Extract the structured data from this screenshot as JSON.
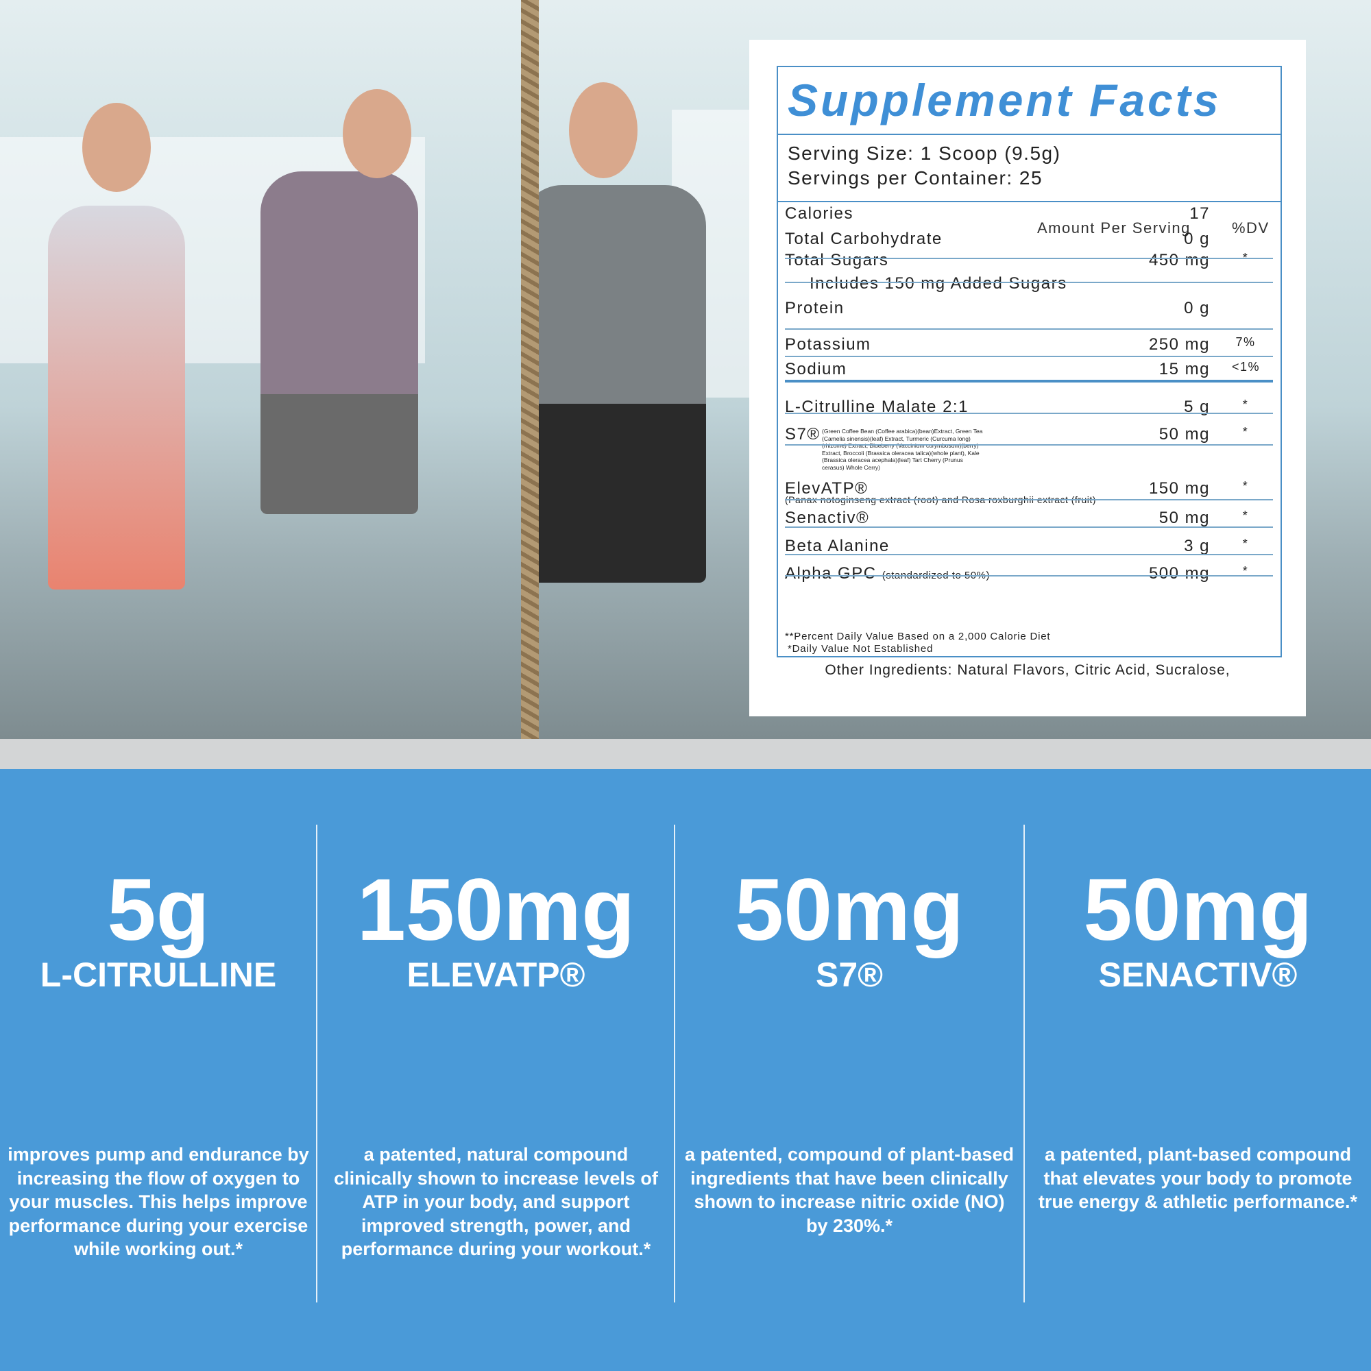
{
  "label": {
    "title": "Supplement Facts",
    "serving_size": "Serving Size: 1 Scoop (9.5g)",
    "servings_per_container": "Servings per Container: 25",
    "header_amount": "Amount Per Serving",
    "header_dv": "%DV",
    "rows": [
      {
        "name": "Calories",
        "amount": "17",
        "dv": ""
      },
      {
        "name": "Total Carbohydrate",
        "amount": "0 g",
        "dv": ""
      },
      {
        "name": "Total Sugars",
        "amount": "450 mg",
        "dv": "*"
      },
      {
        "name": "Includes 150 mg Added Sugars",
        "amount": "",
        "dv": "",
        "indent": true
      },
      {
        "name": "Protein",
        "amount": "0 g",
        "dv": ""
      },
      {
        "name": "Potassium",
        "amount": "250 mg",
        "dv": "7%"
      },
      {
        "name": "Sodium",
        "amount": "15 mg",
        "dv": "<1%"
      },
      {
        "name": "L-Citrulline Malate 2:1",
        "amount": "5 g",
        "dv": "*"
      },
      {
        "name": "S7®",
        "amount": "50 mg",
        "dv": "*",
        "fine": "(Green Coffee Bean (Coffee arabica)(bean)Extract, Green Tea (Camelia sinensis)(leaf) Extract, Turmeric (Curcuma long) (rhizome) Extract, Blueberry (Vaccinium corymbosum)(berry) Extract, Broccoli (Brassica oleracea talica)(whole plant), Kale (Brassica oleracea acephala)(leaf) Tart Cherry (Prunus cerasus) Whole Cerry)"
      },
      {
        "name": "ElevATP®",
        "amount": "150 mg",
        "dv": "*",
        "under": "(Panax notoginseng extract (root) and Rosa roxburghii extract (fruit)"
      },
      {
        "name": "Senactiv®",
        "amount": "50 mg",
        "dv": "*"
      },
      {
        "name": "Beta Alanine",
        "amount": "3 g",
        "dv": "*"
      },
      {
        "name": "Alpha GPC",
        "sub": "(standardized to 50%)",
        "amount": "500 mg",
        "dv": "*"
      }
    ],
    "footnote_1": "**Percent Daily Value Based on a 2,000 Calorie Diet",
    "footnote_2": "*Daily Value Not Established",
    "other_ingredients": "Other Ingredients: Natural Flavors, Citric Acid, Sucralose,"
  },
  "features": [
    {
      "amount": "5g",
      "name": "L-CITRULLINE",
      "desc": "improves pump and endurance by increasing the flow of oxygen to your muscles. This helps improve performance during your exercise while working out.*"
    },
    {
      "amount": "150mg",
      "name": "ELEVATP®",
      "desc": "a patented, natural compound clinically shown to increase levels of ATP in your body, and support improved strength, power, and performance during your workout.*"
    },
    {
      "amount": "50mg",
      "name": "S7®",
      "desc": "a patented, compound of plant-based ingredients that have been clinically shown to increase nitric oxide (NO) by 230%.*"
    },
    {
      "amount": "50mg",
      "name": "SENACTIV®",
      "desc": "a patented, plant-based compound that elevates your body to promote true energy & athletic performance.*"
    }
  ],
  "colors": {
    "accent": "#4a9ad8",
    "label_blue": "#3f8fd6"
  }
}
